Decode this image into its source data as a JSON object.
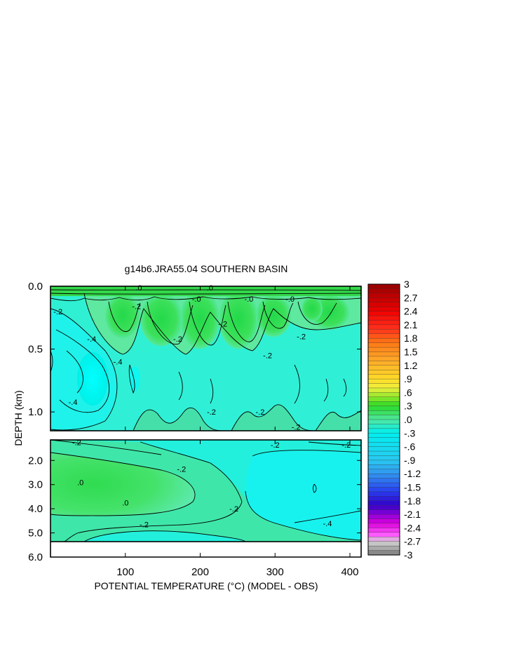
{
  "chart_data": {
    "type": "heatmap",
    "title": "g14b6.JRA55.04 SOUTHERN BASIN",
    "xlabel": "POTENTIAL TEMPERATURE (°C) (MODEL - OBS)",
    "ylabel": "DEPTH (km)",
    "xlim": [
      0,
      415
    ],
    "x_ticks": [
      "100",
      "200",
      "300",
      "400"
    ],
    "x_tick_values": [
      100,
      200,
      300,
      400
    ],
    "upper_panel": {
      "ylim": [
        0.0,
        1.15
      ],
      "y_ticks": [
        "0.0",
        "0.5",
        "1.0"
      ],
      "y_tick_values": [
        0.0,
        0.5,
        1.0
      ]
    },
    "lower_panel": {
      "ylim": [
        1.15,
        6.0
      ],
      "y_ticks": [
        "2.0",
        "3.0",
        "4.0",
        "5.0",
        "6.0"
      ],
      "y_tick_values": [
        2.0,
        3.0,
        4.0,
        5.0,
        6.0
      ]
    },
    "colorbar": {
      "min": -3,
      "max": 3,
      "interval": 0.1,
      "labels": [
        "3",
        "2.7",
        "2.4",
        "2.1",
        "1.8",
        "1.5",
        "1.2",
        ".9",
        ".6",
        ".3",
        ".0",
        "-.3",
        "-.6",
        "-.9",
        "-1.2",
        "-1.5",
        "-1.8",
        "-2.1",
        "-2.4",
        "-2.7",
        "-3"
      ],
      "label_values": [
        3,
        2.7,
        2.4,
        2.1,
        1.8,
        1.5,
        1.2,
        0.9,
        0.6,
        0.3,
        0.0,
        -0.3,
        -0.6,
        -0.9,
        -1.2,
        -1.5,
        -1.8,
        -2.1,
        -2.4,
        -2.7,
        -3
      ]
    },
    "contour_labels": [
      {
        "text": "-.2",
        "x": 10,
        "y": 0.2
      },
      {
        "text": "-.2",
        "x": 115,
        "y": 0.16
      },
      {
        "text": "-.0",
        "x": 195,
        "y": 0.1
      },
      {
        "text": "-.0",
        "x": 265,
        "y": 0.1
      },
      {
        "text": "-.0",
        "x": 320,
        "y": 0.1
      },
      {
        "text": ".0",
        "x": 118,
        "y": 0.01
      },
      {
        "text": ".0",
        "x": 213,
        "y": 0.01
      },
      {
        "text": "-.4",
        "x": 55,
        "y": 0.42
      },
      {
        "text": "-.4",
        "x": 90,
        "y": 0.6
      },
      {
        "text": "-.4",
        "x": 30,
        "y": 0.92
      },
      {
        "text": "-.2",
        "x": 170,
        "y": 0.42
      },
      {
        "text": "-.2",
        "x": 230,
        "y": 0.3
      },
      {
        "text": "-.2",
        "x": 290,
        "y": 0.55
      },
      {
        "text": "-.2",
        "x": 335,
        "y": 0.4
      },
      {
        "text": "-.2",
        "x": 215,
        "y": 1.0
      },
      {
        "text": "-.2",
        "x": 280,
        "y": 1.0
      },
      {
        "text": "-.2",
        "x": 328,
        "y": 1.12
      },
      {
        "text": "-.2",
        "x": 35,
        "y": 1.25
      },
      {
        "text": "-.2",
        "x": 300,
        "y": 1.35
      },
      {
        "text": "-.2",
        "x": 395,
        "y": 1.35
      },
      {
        "text": "-.2",
        "x": 175,
        "y": 2.35
      },
      {
        "text": "-.2",
        "x": 125,
        "y": 4.65
      },
      {
        "text": "-.2",
        "x": 245,
        "y": 4.0
      },
      {
        "text": ".0",
        "x": 40,
        "y": 2.9
      },
      {
        "text": ".0",
        "x": 100,
        "y": 3.75
      },
      {
        "text": "-.4",
        "x": 370,
        "y": 4.6
      }
    ]
  }
}
